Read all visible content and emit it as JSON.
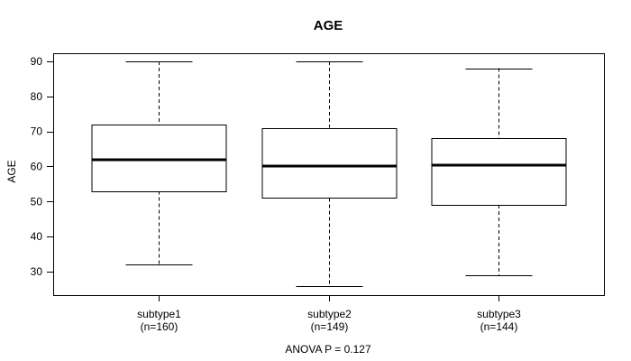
{
  "chart_data": {
    "type": "box",
    "title": "AGE",
    "xlabel": "",
    "ylabel": "AGE",
    "annotation": "ANOVA P = 0.127",
    "ylim": [
      23.3,
      92.3
    ],
    "yticks": [
      30,
      40,
      50,
      60,
      70,
      80,
      90
    ],
    "grid": false,
    "legend": null,
    "categories": [
      "subtype1",
      "subtype2",
      "subtype3"
    ],
    "category_sublabels": [
      "(n=160)",
      "(n=149)",
      "(n=144)"
    ],
    "boxes": [
      {
        "category": "subtype1",
        "n": 160,
        "whisker_low": 32,
        "q1": 53,
        "median": 62,
        "q3": 72,
        "whisker_high": 90
      },
      {
        "category": "subtype2",
        "n": 149,
        "whisker_low": 26,
        "q1": 51,
        "median": 60,
        "q3": 71,
        "whisker_high": 90
      },
      {
        "category": "subtype3",
        "n": 144,
        "whisker_low": 29,
        "q1": 49,
        "median": 60.5,
        "q3": 68,
        "whisker_high": 88
      }
    ],
    "colors": {
      "line": "#000000",
      "median": "#000000",
      "box_fill": "#ffffff",
      "background": "#ffffff"
    }
  }
}
